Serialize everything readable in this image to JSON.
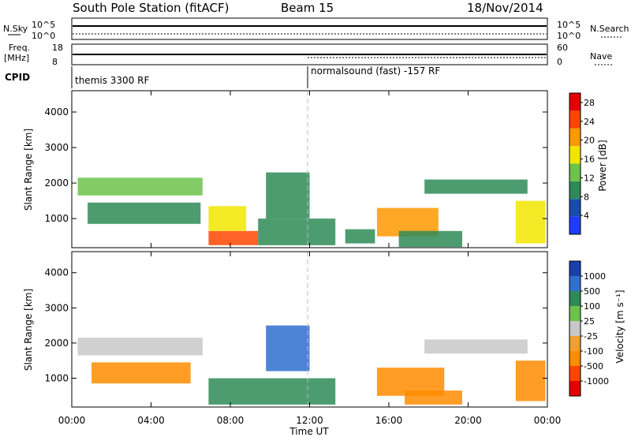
{
  "header": {
    "station": "South Pole Station (fitACF)",
    "beam": "Beam 15",
    "date": "18/Nov/2014"
  },
  "labels": {
    "nsky": "N.Sky",
    "freq": "Freq.",
    "freq_unit": "[MHz]",
    "cpid": "CPID",
    "nsearch": "N.Search",
    "nave": "Nave",
    "exp_left": "themis 3300 RF",
    "exp_right": "normalsound (fast) -157 RF",
    "x_title": "Time UT",
    "y_title": "Slant Range [km]",
    "power_title": "Power [dB]",
    "velocity_title": "Velocity [m s⁻¹]"
  },
  "small_axes": {
    "nsky_ticks": [
      "10^5",
      "10^0"
    ],
    "freq_ticks": [
      "18",
      "8"
    ],
    "nave_ticks": [
      "60",
      "0"
    ],
    "nsearch_ticks": [
      "10^5",
      "10^0"
    ]
  },
  "colors": {
    "power": [
      "#1e3cff",
      "#1a4bb0",
      "#2e8b57",
      "#6cc24a",
      "#f2e600",
      "#ff9900",
      "#ff4500",
      "#e60000"
    ],
    "velocity": [
      "#e60000",
      "#ff4500",
      "#ff8c00",
      "#f0a030",
      "#c8c8c8",
      "#6cc24a",
      "#2e8b57",
      "#2f6fd0",
      "#1a3fb0"
    ]
  },
  "chart_data": [
    {
      "type": "heatmap",
      "title": "",
      "xlabel": "Time UT",
      "ylabel": "Slant Range [km]",
      "x_ticks": [
        "00:00",
        "04:00",
        "08:00",
        "12:00",
        "16:00",
        "20:00",
        "00:00"
      ],
      "xlim": [
        0,
        24
      ],
      "y_ticks": [
        "1000",
        "2000",
        "3000",
        "4000"
      ],
      "ylim": [
        180,
        4600
      ],
      "colorbar": {
        "label": "Power [dB]",
        "ticks": [
          "4",
          "8",
          "12",
          "16",
          "20",
          "24",
          "28"
        ],
        "range": [
          0,
          30
        ]
      },
      "regions": [
        {
          "t0": 0.3,
          "t1": 6.6,
          "r0": 1650,
          "r1": 2150,
          "value": 12
        },
        {
          "t0": 0.8,
          "t1": 6.5,
          "r0": 850,
          "r1": 1450,
          "value": 10
        },
        {
          "t0": 6.9,
          "t1": 9.4,
          "r0": 250,
          "r1": 650,
          "value": 24
        },
        {
          "t0": 6.9,
          "t1": 8.8,
          "r0": 650,
          "r1": 1350,
          "value": 18
        },
        {
          "t0": 9.4,
          "t1": 13.3,
          "r0": 250,
          "r1": 1000,
          "value": 8
        },
        {
          "t0": 9.8,
          "t1": 12.0,
          "r0": 1000,
          "r1": 2300,
          "value": 9
        },
        {
          "t0": 13.8,
          "t1": 15.3,
          "r0": 300,
          "r1": 700,
          "value": 10
        },
        {
          "t0": 15.4,
          "t1": 18.5,
          "r0": 500,
          "r1": 1300,
          "value": 20
        },
        {
          "t0": 16.5,
          "t1": 19.7,
          "r0": 200,
          "r1": 650,
          "value": 10
        },
        {
          "t0": 17.8,
          "t1": 23.0,
          "r0": 1700,
          "r1": 2100,
          "value": 8
        },
        {
          "t0": 22.4,
          "t1": 23.9,
          "r0": 300,
          "r1": 1500,
          "value": 18
        }
      ]
    },
    {
      "type": "heatmap",
      "title": "",
      "xlabel": "Time UT",
      "ylabel": "Slant Range [km]",
      "x_ticks": [
        "00:00",
        "04:00",
        "08:00",
        "12:00",
        "16:00",
        "20:00",
        "00:00"
      ],
      "xlim": [
        0,
        24
      ],
      "y_ticks": [
        "1000",
        "2000",
        "3000",
        "4000"
      ],
      "ylim": [
        180,
        4600
      ],
      "colorbar": {
        "label": "Velocity [m s⁻¹]",
        "ticks": [
          "1000",
          "500",
          "100",
          "25",
          "-25",
          "-100",
          "-500",
          "-1000"
        ]
      },
      "regions": [
        {
          "t0": 0.3,
          "t1": 6.6,
          "r0": 1650,
          "r1": 2150,
          "value": 0
        },
        {
          "t0": 1.0,
          "t1": 6.0,
          "r0": 850,
          "r1": 1450,
          "value": -150
        },
        {
          "t0": 6.9,
          "t1": 13.3,
          "r0": 250,
          "r1": 1000,
          "value": 100
        },
        {
          "t0": 9.8,
          "t1": 12.0,
          "r0": 1200,
          "r1": 2500,
          "value": 600
        },
        {
          "t0": 15.4,
          "t1": 18.8,
          "r0": 500,
          "r1": 1300,
          "value": -300
        },
        {
          "t0": 16.8,
          "t1": 19.7,
          "r0": 250,
          "r1": 650,
          "value": -300
        },
        {
          "t0": 17.8,
          "t1": 23.0,
          "r0": 1700,
          "r1": 2100,
          "value": 0
        },
        {
          "t0": 22.4,
          "t1": 23.9,
          "r0": 350,
          "r1": 1500,
          "value": -300
        }
      ]
    }
  ]
}
